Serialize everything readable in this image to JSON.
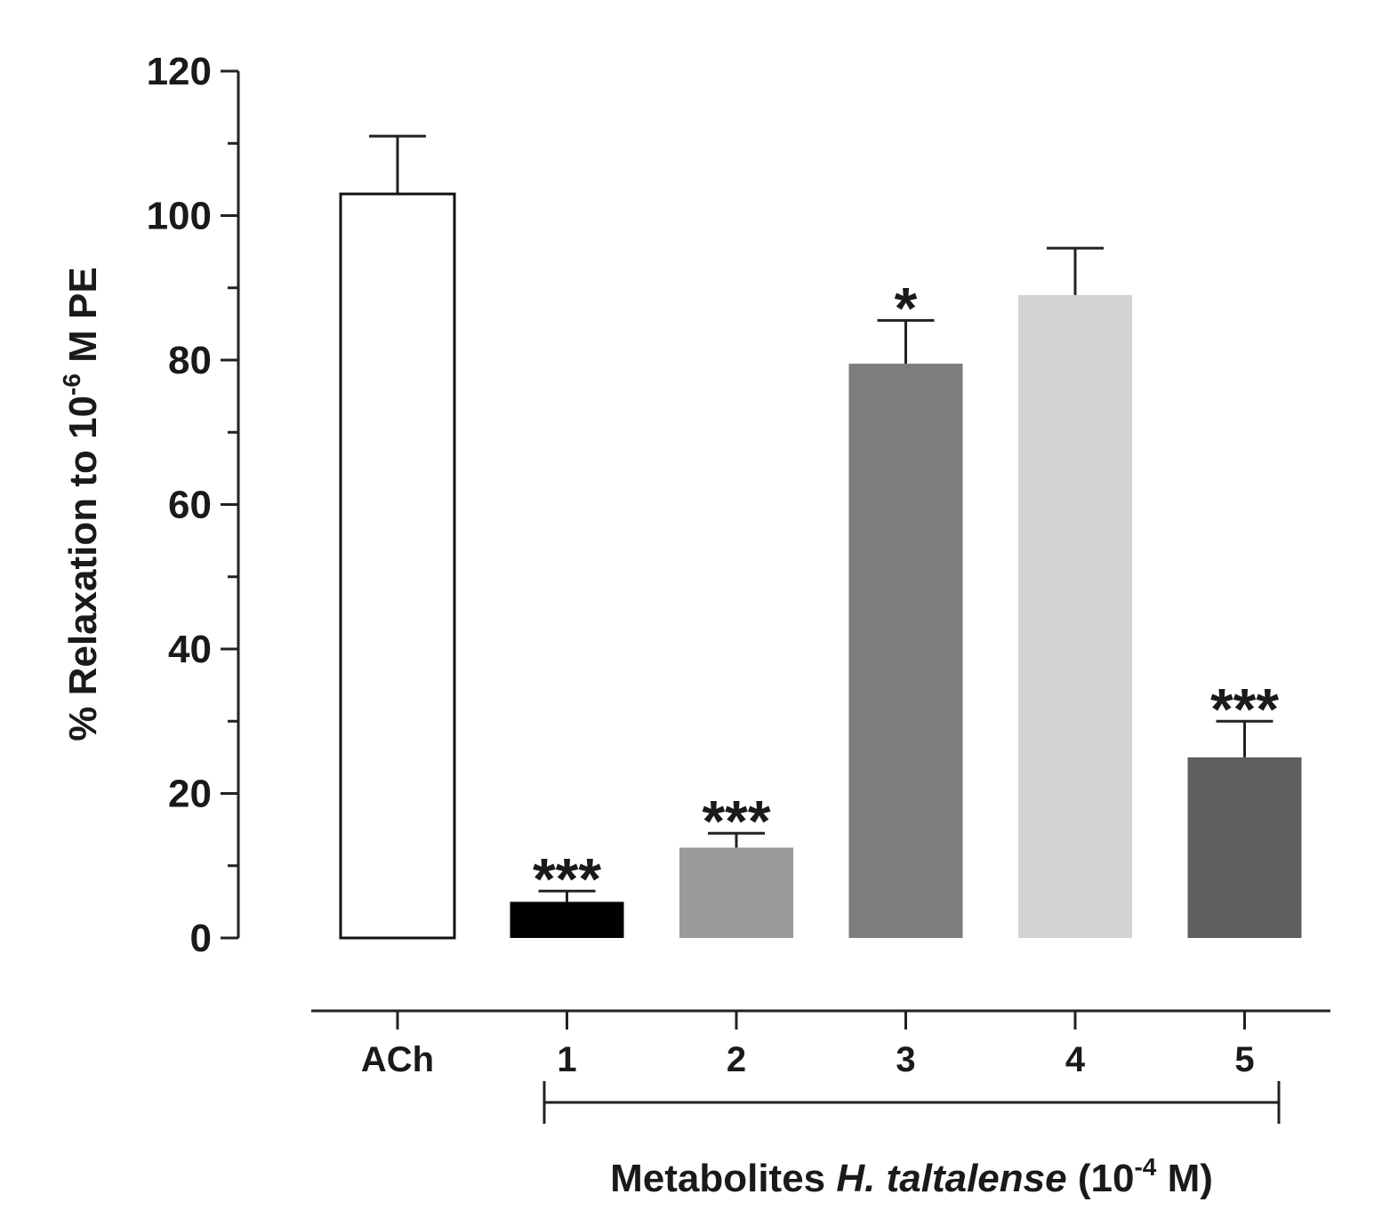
{
  "chart_data": {
    "type": "bar",
    "ylabel_prefix": "% Relaxation to 10",
    "ylabel_sup": "-6",
    "ylabel_suffix": " M PE",
    "ylim": [
      0,
      120
    ],
    "yticks": [
      "0",
      "20",
      "40",
      "60",
      "80",
      "100",
      "120"
    ],
    "categories": [
      "ACh",
      "1",
      "2",
      "3",
      "4",
      "5"
    ],
    "values": [
      103,
      5,
      12.5,
      79.5,
      89,
      25
    ],
    "errors": [
      8,
      1.5,
      2,
      6,
      6.5,
      5
    ],
    "significance": [
      "",
      "***",
      "***",
      "*",
      "",
      "***"
    ],
    "bar_colors": [
      "#ffffff",
      "#000000",
      "#9a9a9d",
      "#7d7d7d",
      "#d3d3d3",
      "#5e5e5e"
    ],
    "group_label": {
      "prefix": "Metabolites ",
      "italic": "H. taltalense",
      "suffix_open": " (10",
      "sup": "-4",
      "suffix_close": " M)"
    }
  }
}
